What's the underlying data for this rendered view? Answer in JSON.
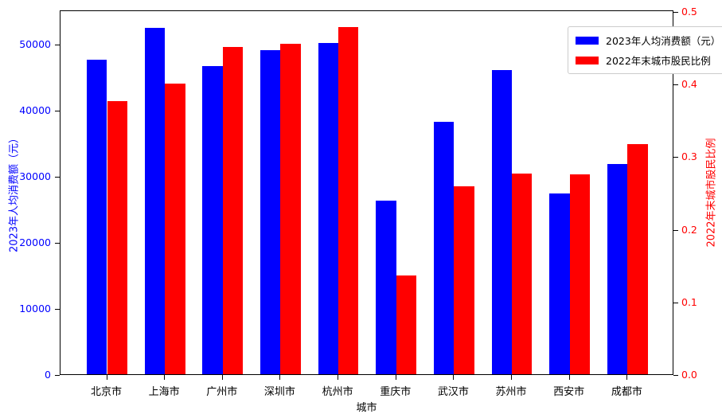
{
  "chart_data": {
    "type": "bar",
    "title": "",
    "xlabel": "城市",
    "ylabel_left": "2023年人均消费额（元）",
    "ylabel_right": "2022年末城市股民比例",
    "categories": [
      "北京市",
      "上海市",
      "广州市",
      "深圳市",
      "杭州市",
      "重庆市",
      "武汉市",
      "苏州市",
      "西安市",
      "成都市"
    ],
    "series": [
      {
        "name": "2023年人均消费额（元）",
        "axis": "left",
        "color": "#0000ff",
        "values": [
          47800,
          52700,
          46800,
          49300,
          50400,
          26400,
          38400,
          46300,
          27500,
          32000
        ]
      },
      {
        "name": "2022年末城市股民比例",
        "axis": "right",
        "color": "#ff0000",
        "values": [
          0.378,
          0.402,
          0.453,
          0.457,
          0.48,
          0.136,
          0.26,
          0.277,
          0.276,
          0.318
        ]
      }
    ],
    "ylim_left": [
      0,
      55200
    ],
    "ylim_right": [
      0,
      0.502
    ],
    "yticks_left": [
      "0",
      "10000",
      "20000",
      "30000",
      "40000",
      "50000"
    ],
    "yticks_right": [
      "0.0",
      "0.1",
      "0.2",
      "0.3",
      "0.4",
      "0.5"
    ],
    "grid": false,
    "legend_position": "upper right",
    "background": "#ffffff"
  }
}
